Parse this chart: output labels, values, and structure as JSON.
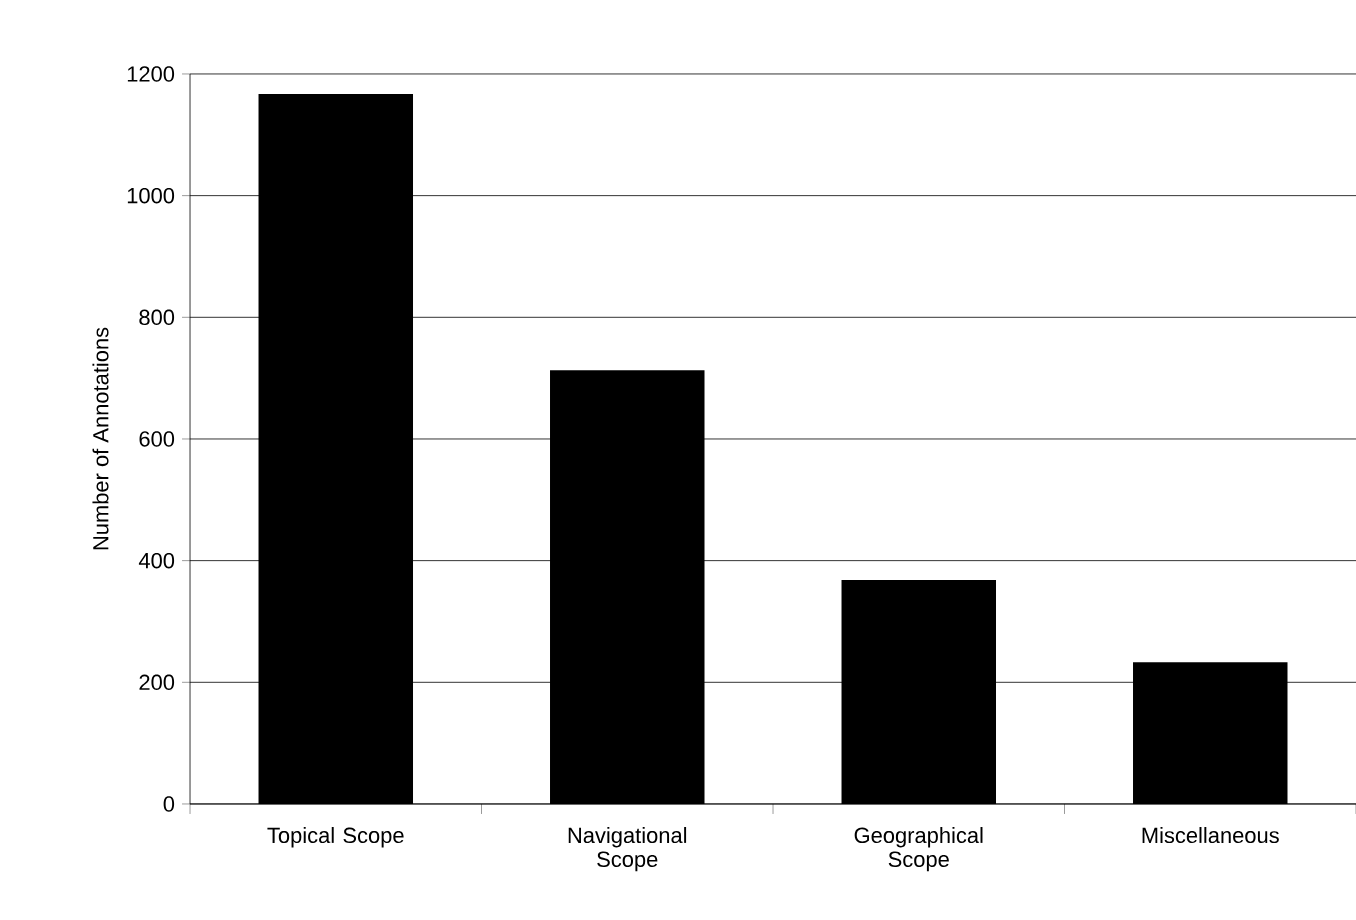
{
  "chart_data": {
    "type": "bar",
    "ylabel": "Number of Annotations",
    "categories": [
      "Topical Scope",
      "Navigational Scope",
      "Geographical Scope",
      "Miscellaneous"
    ],
    "values": [
      1167,
      713,
      368,
      233
    ],
    "color": "#000000",
    "ylim": [
      0,
      1200
    ],
    "yticks": [
      0,
      200,
      400,
      600,
      800,
      1000,
      1200
    ],
    "grid": "y"
  }
}
